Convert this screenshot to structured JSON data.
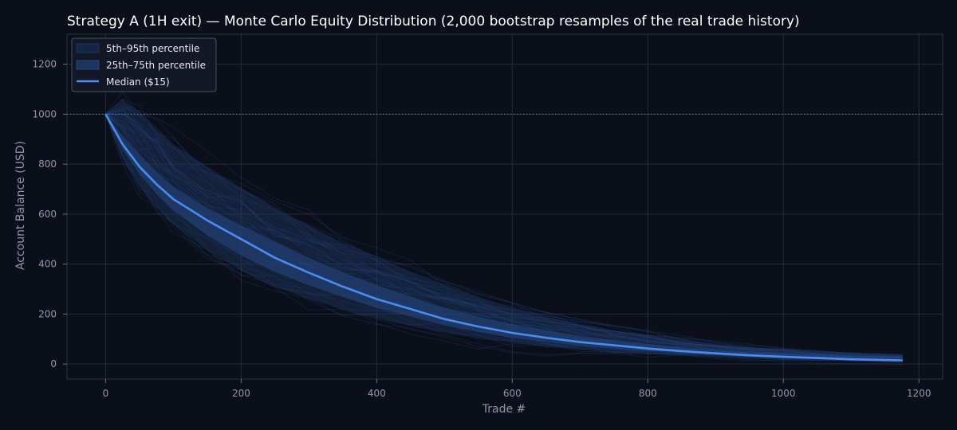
{
  "chart_data": {
    "type": "area",
    "title": "Strategy A (1H exit) — Monte Carlo Equity Distribution (2,000 bootstrap resamples of the real trade history)",
    "xlabel": "Trade #",
    "ylabel": "Account Balance (USD)",
    "xlim": [
      -57,
      1235
    ],
    "ylim": [
      -60,
      1320
    ],
    "xticks": [
      0,
      200,
      400,
      600,
      800,
      1000,
      1200
    ],
    "yticks": [
      0,
      200,
      400,
      600,
      800,
      1000,
      1200
    ],
    "grid": true,
    "reference_line": {
      "y": 1000,
      "style": "dotted"
    },
    "legend": {
      "placement": "top-left",
      "entries": [
        "5th–95th percentile",
        "25th–75th percentile",
        "Median ($15)"
      ]
    },
    "x": [
      0,
      25,
      50,
      75,
      100,
      150,
      200,
      250,
      300,
      350,
      400,
      450,
      500,
      550,
      600,
      650,
      700,
      750,
      800,
      850,
      900,
      950,
      1000,
      1050,
      1100,
      1176
    ],
    "series": [
      {
        "name": "Median ($15)",
        "role": "median",
        "values": [
          1000,
          880,
          790,
          720,
          660,
          575,
          500,
          425,
          365,
          310,
          260,
          220,
          180,
          150,
          125,
          105,
          88,
          75,
          62,
          52,
          43,
          35,
          29,
          24,
          19,
          15
        ]
      },
      {
        "role": "p25",
        "values": [
          1000,
          860,
          760,
          680,
          615,
          515,
          435,
          368,
          315,
          268,
          225,
          190,
          155,
          128,
          105,
          88,
          74,
          62,
          52,
          43,
          36,
          29,
          24,
          19,
          15,
          11
        ]
      },
      {
        "role": "p75",
        "values": [
          1000,
          915,
          840,
          770,
          710,
          625,
          555,
          490,
          425,
          368,
          315,
          270,
          225,
          190,
          160,
          135,
          113,
          95,
          80,
          67,
          56,
          47,
          39,
          32,
          27,
          21
        ]
      },
      {
        "role": "p05",
        "values": [
          1000,
          820,
          710,
          630,
          560,
          455,
          375,
          310,
          260,
          218,
          182,
          152,
          126,
          104,
          85,
          70,
          58,
          48,
          40,
          33,
          27,
          22,
          18,
          14,
          11,
          7
        ]
      },
      {
        "role": "p95",
        "values": [
          1000,
          1060,
          1010,
          945,
          880,
          790,
          705,
          625,
          555,
          485,
          430,
          370,
          318,
          270,
          225,
          190,
          160,
          135,
          115,
          97,
          82,
          69,
          58,
          48,
          40,
          34
        ]
      }
    ],
    "colors": {
      "background": "#0b0f19",
      "band_outer": "#1d3560",
      "band_inner": "#24467f",
      "median": "#4a8cf0",
      "grid": "#252b3a",
      "text": "#8d97aa"
    }
  }
}
